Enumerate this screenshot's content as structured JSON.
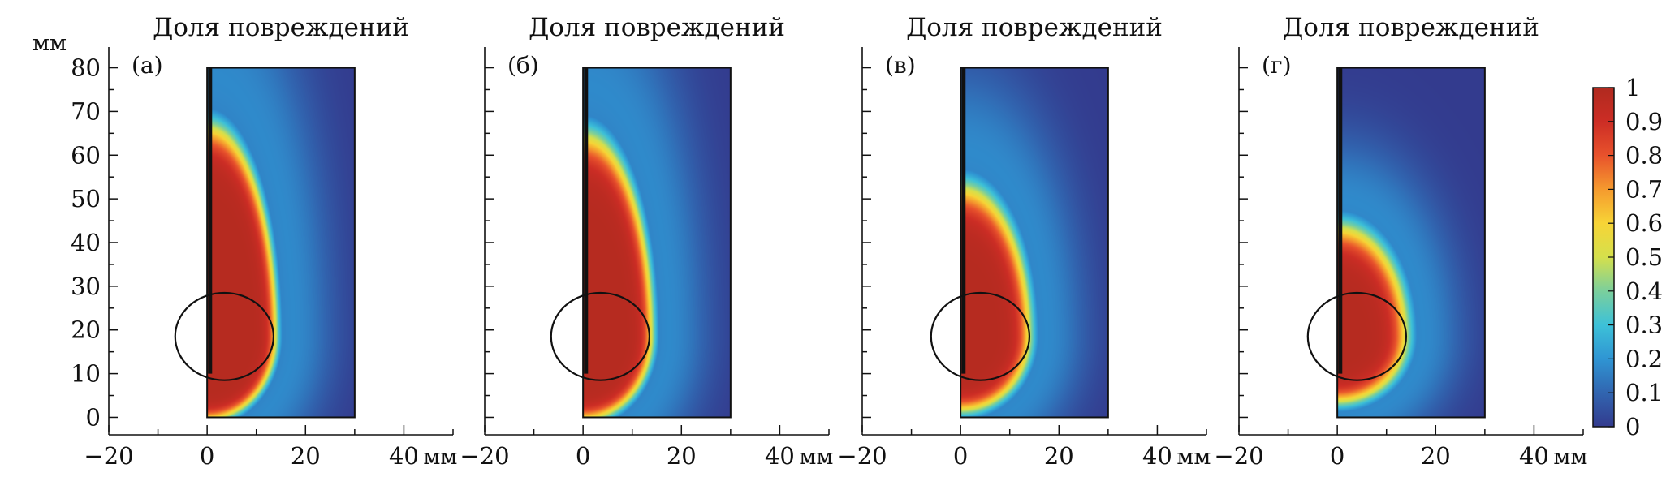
{
  "chart_data": {
    "type": "heatmap",
    "unit": "мм",
    "x_ticks": [
      -20,
      0,
      20,
      40
    ],
    "y_ticks": [
      0,
      10,
      20,
      30,
      40,
      50,
      60,
      70,
      80
    ],
    "xlim": [
      -20,
      50
    ],
    "ylim": [
      -4,
      84
    ],
    "domain": {
      "x": [
        0,
        30
      ],
      "y": [
        0,
        80
      ]
    },
    "colorbar": {
      "range": [
        0,
        1
      ],
      "ticks": [
        "0",
        "0.1",
        "0.2",
        "0.3",
        "0.4",
        "0.5",
        "0.6",
        "0.7",
        "0.8",
        "0.9",
        "1"
      ],
      "colors": [
        "#333b8e",
        "#3165b0",
        "#2f95d3",
        "#3dc1d8",
        "#7bcf9c",
        "#d5e04c",
        "#f7d436",
        "#f59a2e",
        "#e8522c",
        "#cc2d25",
        "#b02a1f"
      ]
    },
    "panels": [
      {
        "title": "Доля повреждений",
        "label": "(а)",
        "show_y_ticks": true,
        "circle": {
          "cx": 3.5,
          "cy": 18.5,
          "r": 10
        },
        "crack": {
          "x": 0.6,
          "y0": 10,
          "y1": 80
        },
        "damage_zone": {
          "cx": 0,
          "cy": 18.5,
          "rx": 14,
          "ry_up": 48,
          "ry_down": 19,
          "sharpness": 8
        }
      },
      {
        "title": "Доля повреждений",
        "label": "(б)",
        "show_y_ticks": false,
        "circle": {
          "cx": 3.5,
          "cy": 18.5,
          "r": 10
        },
        "crack": {
          "x": 0.6,
          "y0": 10,
          "y1": 80
        },
        "damage_zone": {
          "cx": 0,
          "cy": 18.5,
          "rx": 14,
          "ry_up": 46,
          "ry_down": 19,
          "sharpness": 7
        }
      },
      {
        "title": "Доля повреждений",
        "label": "(в)",
        "show_y_ticks": false,
        "circle": {
          "cx": 4,
          "cy": 18.5,
          "r": 10
        },
        "crack": {
          "x": 0.6,
          "y0": 10,
          "y1": 80
        },
        "damage_zone": {
          "cx": 0,
          "cy": 18.5,
          "rx": 14,
          "ry_up": 34,
          "ry_down": 17,
          "sharpness": 5.5
        }
      },
      {
        "title": "Доля повреждений",
        "label": "(г)",
        "show_y_ticks": false,
        "circle": {
          "cx": 4,
          "cy": 18.5,
          "r": 10
        },
        "crack": {
          "x": 0.6,
          "y0": 10,
          "y1": 80
        },
        "damage_zone": {
          "cx": 0,
          "cy": 18.5,
          "rx": 14,
          "ry_up": 25,
          "ry_down": 15,
          "sharpness": 4.5
        }
      }
    ]
  }
}
